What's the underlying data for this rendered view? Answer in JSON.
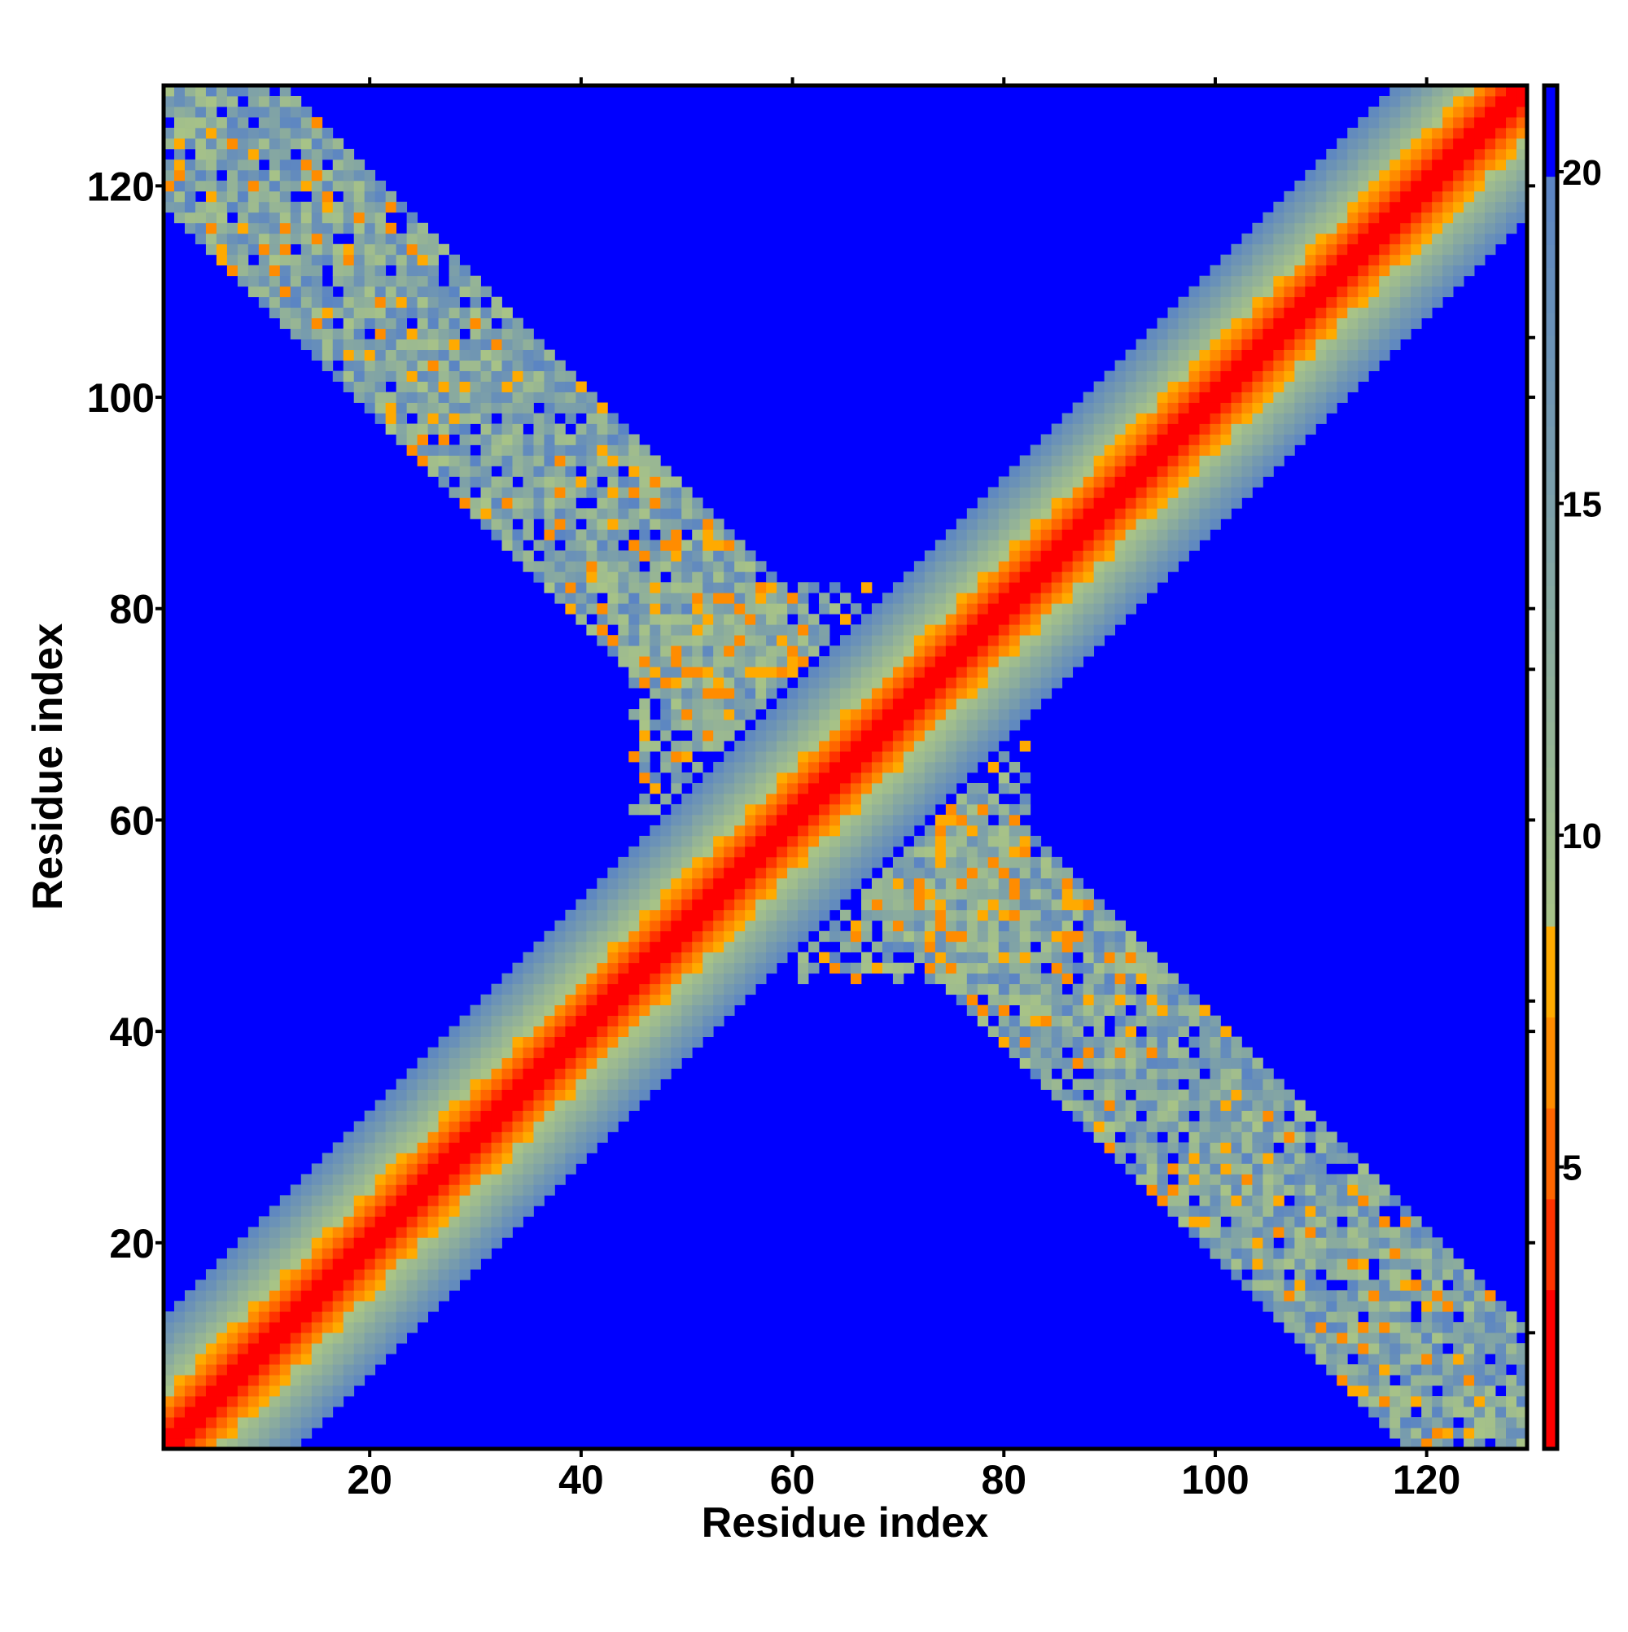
{
  "chart_data": {
    "type": "heatmap",
    "title": "",
    "xlabel": "Residue index",
    "ylabel": "Residue index",
    "n_residues": 129,
    "xlim": [
      0.5,
      129.5
    ],
    "ylim": [
      0.5,
      129.5
    ],
    "xticks": [
      20,
      40,
      60,
      80,
      100,
      120
    ],
    "yticks": [
      20,
      40,
      60,
      80,
      100,
      120
    ],
    "colorbar": {
      "range": [
        0.75,
        21.3
      ],
      "ticks": [
        5,
        10,
        15,
        20
      ],
      "minor_ticks": [
        2.5,
        7.5,
        12.5,
        17.5
      ],
      "stops": [
        {
          "max": 3.0,
          "color": "#ff0000"
        },
        {
          "max": 4.5,
          "color": "#ff3300"
        },
        {
          "max": 6.0,
          "color": "#ff6600"
        },
        {
          "max": 7.3,
          "color": "#ff8c00"
        },
        {
          "max": 8.5,
          "color": "#ffaa00"
        },
        {
          "max": 20.0,
          "color_from": "#a9c486",
          "color_to": "#5a84c4"
        },
        {
          "max": 99,
          "color": "#0000ff"
        }
      ]
    },
    "structure": {
      "diagonal_band": {
        "red_max_offset": 2,
        "orange_max_offset": 4,
        "cutoff_offset": 13,
        "value_per_offset": 1.5
      },
      "antidiagonal_band": {
        "sum": 130,
        "half_width": 11,
        "value_range": [
          8.6,
          20
        ],
        "orange_fraction": 0.1,
        "blue_fraction": 0.06
      },
      "central_region": {
        "range": [
          45,
          82
        ],
        "half_width": 24,
        "fill_fraction": 0.55,
        "value_range": [
          6,
          20
        ]
      }
    }
  }
}
